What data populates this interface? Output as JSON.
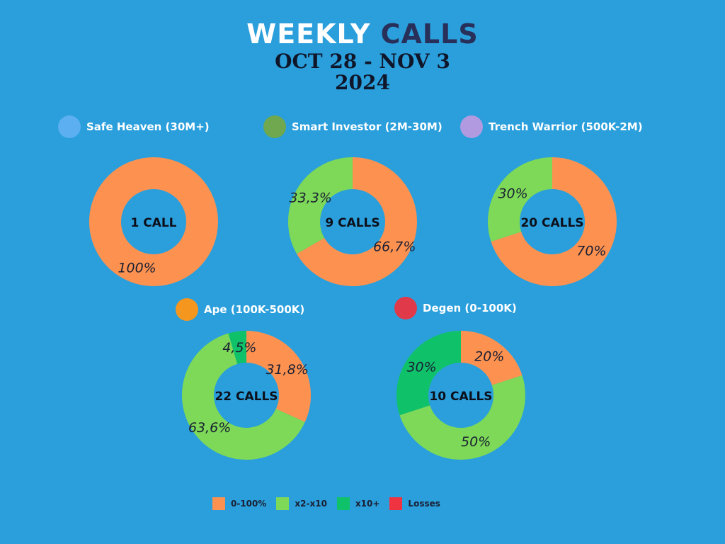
{
  "title": {
    "part1": "WEEKLY",
    "part2": "CALLS",
    "line2": "OCT 28 - NOV 3",
    "line3": "2024"
  },
  "colors": {
    "orange": "#fd9250",
    "green": "#7dd957",
    "darkgreen": "#0fc26a",
    "red": "#e0394a"
  },
  "categories": [
    {
      "label": "Safe Heaven  (30M+)",
      "color": "#5caff0"
    },
    {
      "label": "Smart Investor (2M-30M)",
      "color": "#6fa84e"
    },
    {
      "label": "Trench Warrior  (500K-2M)",
      "color": "#b29ae0"
    },
    {
      "label": "Ape (100K-500K)",
      "color": "#f5961e"
    },
    {
      "label": "Degen (0-100K)",
      "color": "#e0394a"
    }
  ],
  "legend": [
    {
      "label": "0-100%",
      "color": "#fd9250"
    },
    {
      "label": "x2-x10",
      "color": "#7dd957"
    },
    {
      "label": "x10+",
      "color": "#0fc26a"
    },
    {
      "label": "Losses",
      "color": "#ef3340"
    }
  ],
  "chart_data": [
    {
      "type": "pie",
      "center_label": "1 CALL",
      "slices": [
        {
          "label": "0-100%",
          "value": 100,
          "text": "100%"
        }
      ]
    },
    {
      "type": "pie",
      "center_label": "9 CALLS",
      "slices": [
        {
          "label": "0-100%",
          "value": 66.7,
          "text": "66,7%"
        },
        {
          "label": "x2-x10",
          "value": 33.3,
          "text": "33,3%"
        }
      ]
    },
    {
      "type": "pie",
      "center_label": "20 CALLS",
      "slices": [
        {
          "label": "0-100%",
          "value": 70,
          "text": "70%"
        },
        {
          "label": "x2-x10",
          "value": 30,
          "text": "30%"
        }
      ]
    },
    {
      "type": "pie",
      "center_label": "22 CALLS",
      "slices": [
        {
          "label": "0-100%",
          "value": 31.8,
          "text": "31,8%"
        },
        {
          "label": "x2-x10",
          "value": 63.6,
          "text": "63,6%"
        },
        {
          "label": "x10+",
          "value": 4.5,
          "text": "4,5%"
        }
      ]
    },
    {
      "type": "pie",
      "center_label": "10 CALLS",
      "slices": [
        {
          "label": "0-100%",
          "value": 20,
          "text": "20%"
        },
        {
          "label": "x2-x10",
          "value": 50,
          "text": "50%"
        },
        {
          "label": "x10+",
          "value": 30,
          "text": "30%"
        }
      ]
    }
  ]
}
